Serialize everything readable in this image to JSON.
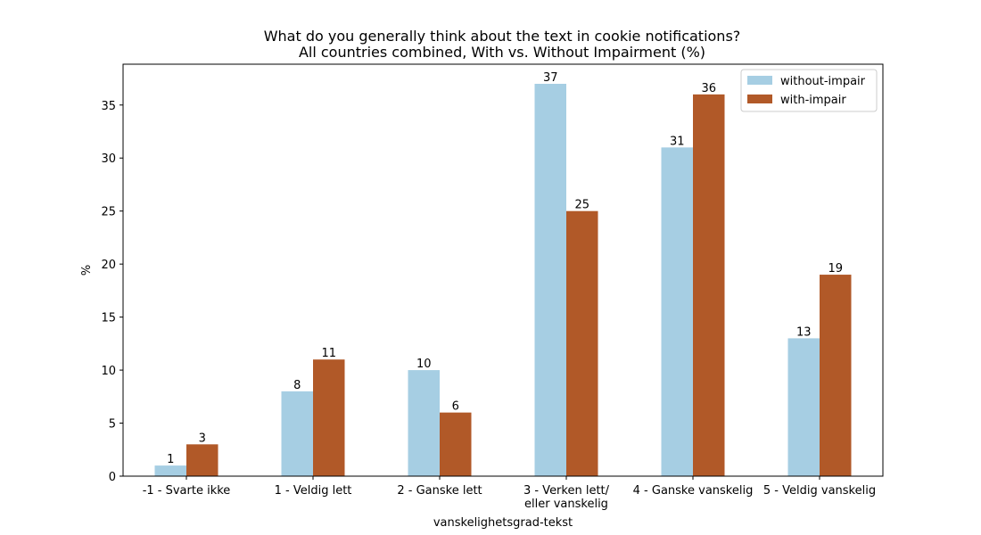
{
  "chart_data": {
    "type": "bar",
    "title_line1": "What do you generally think about the text in cookie notifications?",
    "title_line2": "All countries combined, With vs. Without Impairment (%)",
    "xlabel": "vanskelighetsgrad-tekst",
    "ylabel": "%",
    "ylim": [
      0,
      38.85
    ],
    "yticks": [
      0,
      5,
      10,
      15,
      20,
      25,
      30,
      35
    ],
    "categories": [
      [
        "-1 - Svarte ikke"
      ],
      [
        "1 - Veldig lett"
      ],
      [
        "2 - Ganske lett"
      ],
      [
        "3 - Verken lett/",
        "eller vanskelig"
      ],
      [
        "4 - Ganske vanskelig"
      ],
      [
        "5 - Veldig vanskelig"
      ]
    ],
    "series": [
      {
        "name": "without-impair",
        "color": "#a6cee3",
        "values": [
          1,
          8,
          10,
          37,
          31,
          13
        ]
      },
      {
        "name": "with-impair",
        "color": "#b15928",
        "values": [
          3,
          11,
          6,
          25,
          36,
          19
        ]
      }
    ],
    "legend": "top-right",
    "grid": false
  }
}
